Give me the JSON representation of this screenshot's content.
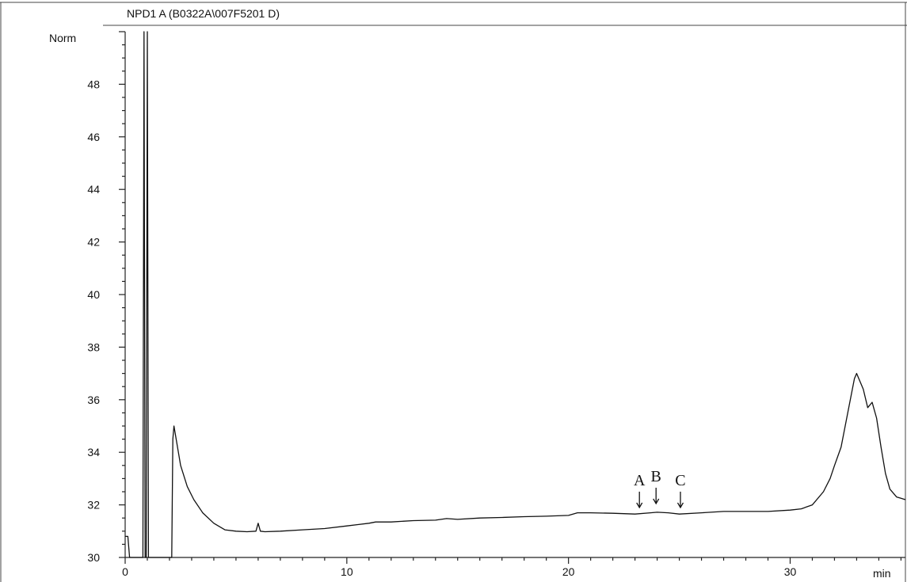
{
  "chart_data": {
    "type": "line",
    "title": "NPD1 A   (B0322A\\007F5201 D)",
    "ylabel": "Norm",
    "xlabel": "min",
    "xlim": [
      0,
      35.2
    ],
    "ylim": [
      30,
      50
    ],
    "yticks": [
      30,
      32,
      34,
      36,
      38,
      40,
      42,
      44,
      46,
      48
    ],
    "xticks": [
      0,
      10,
      20,
      30
    ],
    "grid": false,
    "series": [
      {
        "x": [
          0,
          0.05,
          0.12,
          0.2,
          0.8,
          0.85,
          0.9,
          0.95,
          1.0,
          1.05,
          1.1,
          1.2,
          2.1,
          2.15,
          2.2,
          2.3,
          2.5,
          2.8,
          3.1,
          3.5,
          4.0,
          4.5,
          5.0,
          5.5,
          5.9,
          6.0,
          6.1,
          6.3,
          7.0,
          8.0,
          9.0,
          10.0,
          10.5,
          11.0,
          11.3,
          12.0,
          13.0,
          14.0,
          14.5,
          15.0,
          16.0,
          17.0,
          18.0,
          19.0,
          20.0,
          20.4,
          21.0,
          22.0,
          23.0,
          23.7,
          24.0,
          24.5,
          25.0,
          26.0,
          27.0,
          28.0,
          29.0,
          30.0,
          30.5,
          31.0,
          31.5,
          31.8,
          32.0,
          32.3,
          32.6,
          32.9,
          33.0,
          33.1,
          33.3,
          33.5,
          33.7,
          33.8,
          33.9,
          34.1,
          34.3,
          34.5,
          34.8,
          35.0,
          35.2
        ],
        "y": [
          30.8,
          30.8,
          30.8,
          30.0,
          30.0,
          50.0,
          30.0,
          30.0,
          50.0,
          30.0,
          30.0,
          30.0,
          30.0,
          34.5,
          35.0,
          34.5,
          33.5,
          32.7,
          32.2,
          31.7,
          31.3,
          31.05,
          31.0,
          30.98,
          31.0,
          31.3,
          31.0,
          30.98,
          31.0,
          31.05,
          31.1,
          31.2,
          31.25,
          31.3,
          31.35,
          31.35,
          31.4,
          31.42,
          31.48,
          31.45,
          31.5,
          31.52,
          31.55,
          31.57,
          31.6,
          31.7,
          31.7,
          31.68,
          31.65,
          31.7,
          31.72,
          31.7,
          31.65,
          31.7,
          31.75,
          31.75,
          31.75,
          31.8,
          31.85,
          32.0,
          32.5,
          33.0,
          33.5,
          34.2,
          35.5,
          36.8,
          37.0,
          36.8,
          36.4,
          35.7,
          35.9,
          35.6,
          35.3,
          34.2,
          33.2,
          32.6,
          32.3,
          32.25,
          32.2
        ]
      }
    ],
    "annotations": [
      {
        "text": "A",
        "x": 23.2,
        "y": 31.9
      },
      {
        "text": "B",
        "x": 23.95,
        "y": 32.05
      },
      {
        "text": "C",
        "x": 25.05,
        "y": 31.9
      }
    ]
  }
}
